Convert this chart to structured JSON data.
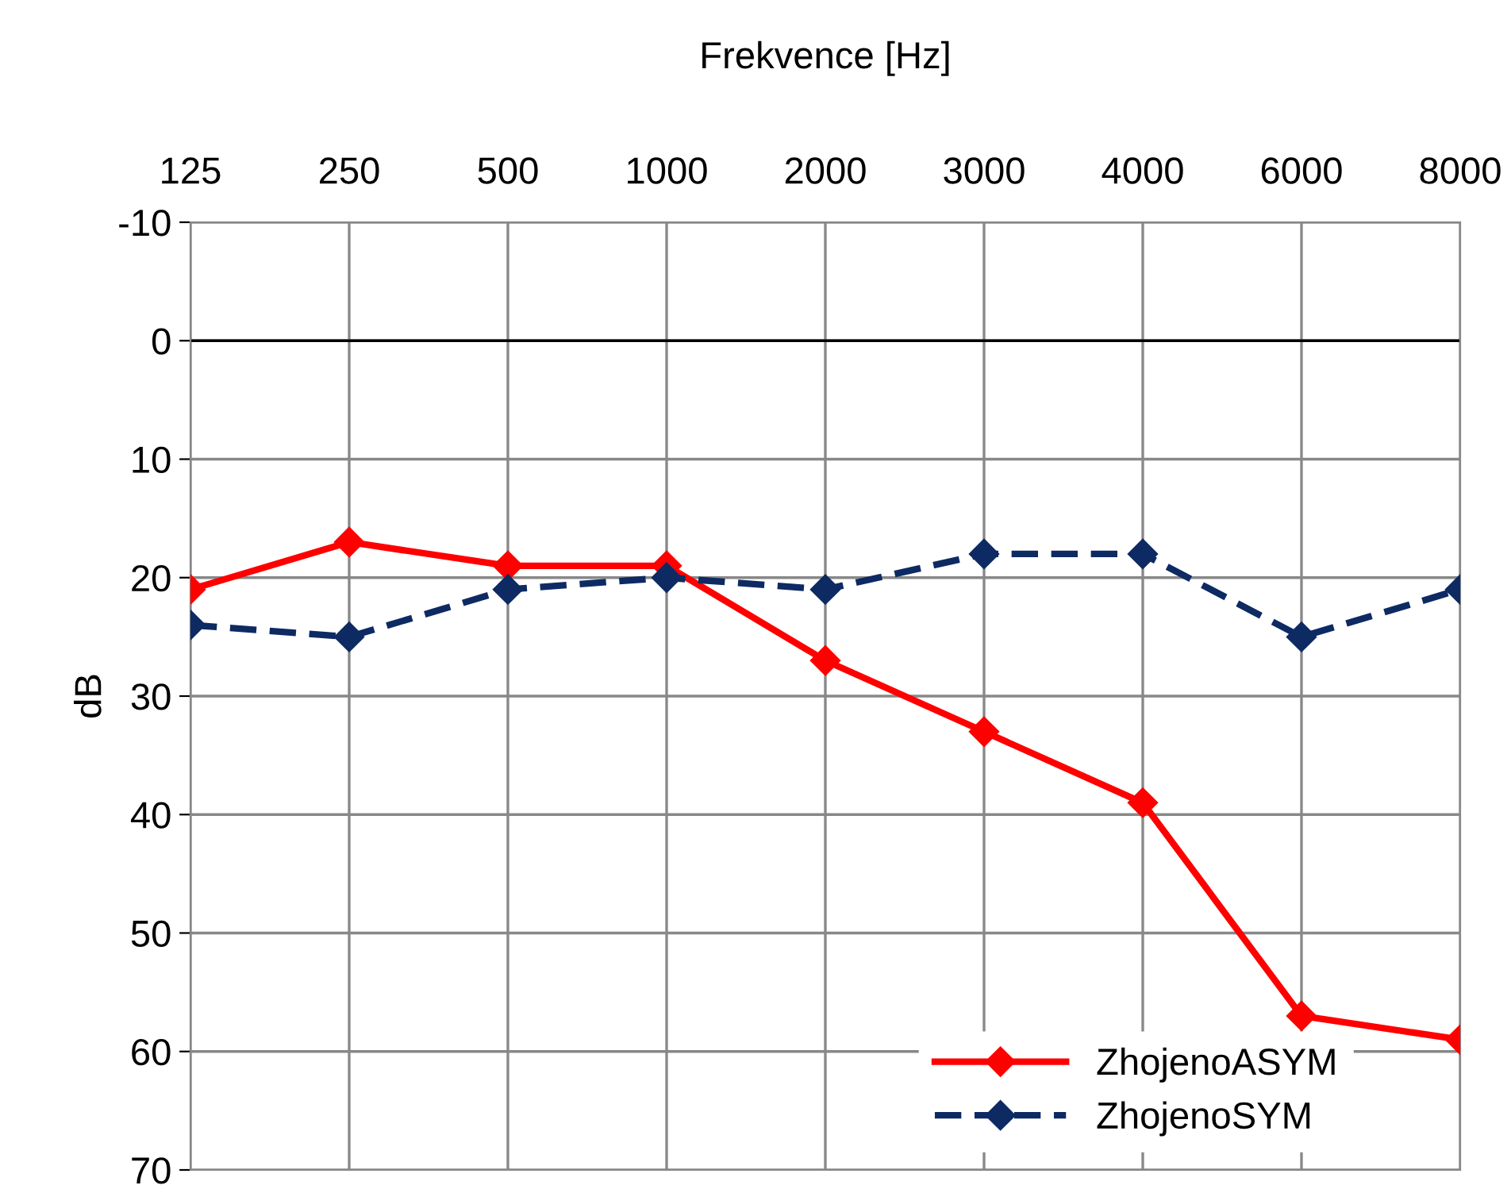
{
  "chart_data": {
    "type": "line",
    "xlabel": "Frekvence [Hz]",
    "ylabel": "dB",
    "categories": [
      "125",
      "250",
      "500",
      "1000",
      "2000",
      "3000",
      "4000",
      "6000",
      "8000"
    ],
    "series": [
      {
        "name": "ZhojenoASYM",
        "color": "#ff0000",
        "values": [
          21,
          17,
          19,
          19,
          27,
          33,
          39,
          57,
          59
        ],
        "line_style": "solid"
      },
      {
        "name": "ZhojenoSYM",
        "color": "#0d2a63",
        "values": [
          24,
          25,
          21,
          20,
          21,
          18,
          18,
          25,
          21
        ],
        "line_style": "dashed"
      }
    ],
    "ylim": [
      70,
      -10
    ],
    "yticks": [
      -10,
      0,
      10,
      20,
      30,
      40,
      50,
      60,
      70
    ],
    "ref_lines": [
      {
        "axis": "y",
        "value": 0,
        "label": null,
        "color": "#000000"
      }
    ],
    "grid": true,
    "legend": "bottom right",
    "marker": "diamond"
  }
}
